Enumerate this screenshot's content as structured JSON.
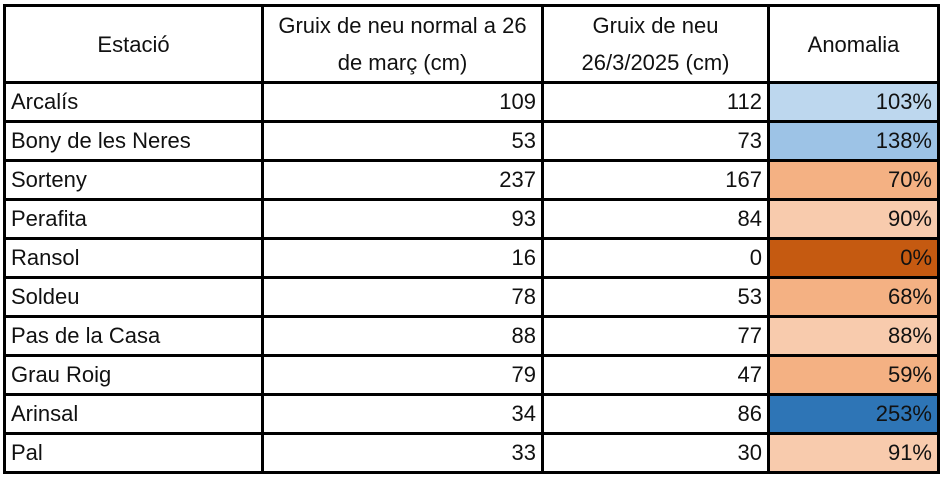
{
  "headers": [
    "Estació",
    "Gruix de neu normal a 26 de març (cm)",
    "Gruix de neu 26/3/2025 (cm)",
    "Anomalia"
  ],
  "rows": [
    {
      "station": "Arcalís",
      "normal": "109",
      "current": "112",
      "anomaly": "103%",
      "color": "#BDD7EE"
    },
    {
      "station": "Bony de les Neres",
      "normal": "53",
      "current": "73",
      "anomaly": "138%",
      "color": "#9DC3E6"
    },
    {
      "station": "Sorteny",
      "normal": "237",
      "current": "167",
      "anomaly": "70%",
      "color": "#F4B183"
    },
    {
      "station": "Perafita",
      "normal": "93",
      "current": "84",
      "anomaly": "90%",
      "color": "#F8CBAD"
    },
    {
      "station": "Ransol",
      "normal": "16",
      "current": "0",
      "anomaly": "0%",
      "color": "#C55A11"
    },
    {
      "station": "Soldeu",
      "normal": "78",
      "current": "53",
      "anomaly": "68%",
      "color": "#F4B183"
    },
    {
      "station": "Pas de la Casa",
      "normal": "88",
      "current": "77",
      "anomaly": "88%",
      "color": "#F8CBAD"
    },
    {
      "station": "Grau Roig",
      "normal": "79",
      "current": "47",
      "anomaly": "59%",
      "color": "#F4B183"
    },
    {
      "station": "Arinsal",
      "normal": "34",
      "current": "86",
      "anomaly": "253%",
      "color": "#2E75B6"
    },
    {
      "station": "Pal",
      "normal": "33",
      "current": "30",
      "anomaly": "91%",
      "color": "#F8CBAD"
    }
  ]
}
